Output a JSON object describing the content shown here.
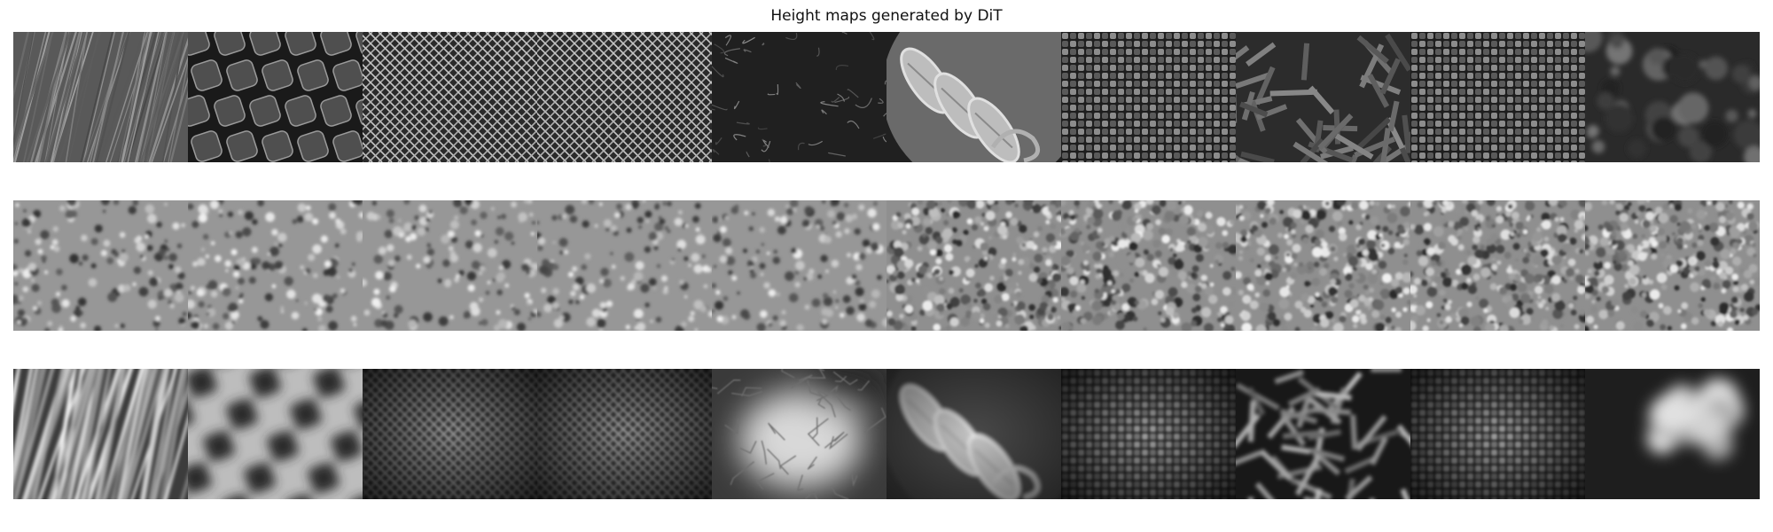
{
  "figure": {
    "title": "Height maps generated by DiT"
  },
  "rows": [
    {
      "row_id": "input-textures",
      "tiles": [
        {
          "pattern": "straw-fibers"
        },
        {
          "pattern": "rubber-knobs"
        },
        {
          "pattern": "wire-mesh"
        },
        {
          "pattern": "wire-mesh"
        },
        {
          "pattern": "leather-grain"
        },
        {
          "pattern": "coin-relief"
        },
        {
          "pattern": "woven-fabric"
        },
        {
          "pattern": "paper-strips"
        },
        {
          "pattern": "woven-fabric"
        },
        {
          "pattern": "rough-stone"
        }
      ]
    },
    {
      "row_id": "noisy-height-maps",
      "tiles": [
        {
          "pattern": "noise-flat"
        },
        {
          "pattern": "noise-flat"
        },
        {
          "pattern": "noise-flat"
        },
        {
          "pattern": "noise-flat"
        },
        {
          "pattern": "noise-flat"
        },
        {
          "pattern": "noise-fine"
        },
        {
          "pattern": "noise-fine"
        },
        {
          "pattern": "noise-fine"
        },
        {
          "pattern": "noise-fine"
        },
        {
          "pattern": "noise-fine"
        }
      ]
    },
    {
      "row_id": "generated-height-maps",
      "tiles": [
        {
          "pattern": "straw-fibers-soft"
        },
        {
          "pattern": "checker-blur"
        },
        {
          "pattern": "wire-mesh-soft"
        },
        {
          "pattern": "wire-mesh-soft"
        },
        {
          "pattern": "veins-glow"
        },
        {
          "pattern": "coin-relief-soft"
        },
        {
          "pattern": "woven-fabric-soft"
        },
        {
          "pattern": "paper-strips-soft"
        },
        {
          "pattern": "woven-fabric-soft"
        },
        {
          "pattern": "cloud-blob"
        }
      ]
    }
  ]
}
